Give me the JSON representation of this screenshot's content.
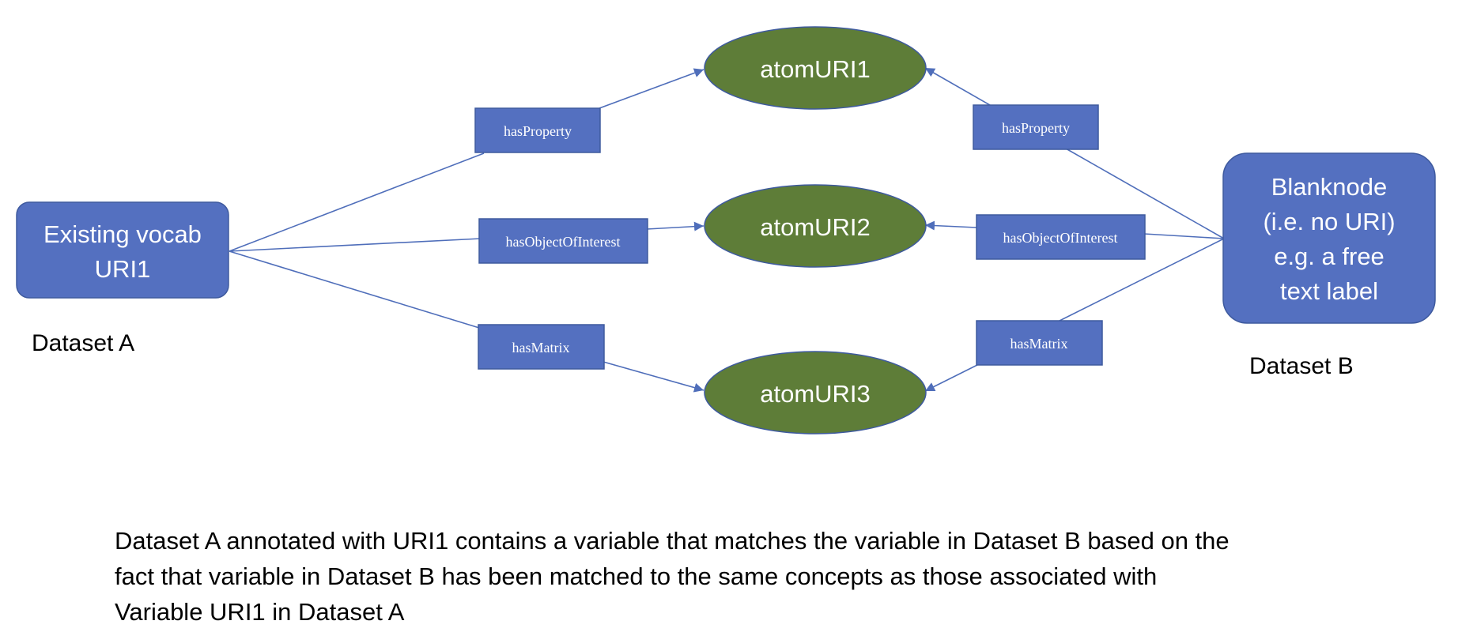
{
  "nodes": {
    "vocab": {
      "lines": [
        "Existing vocab",
        "URI1"
      ]
    },
    "blank": {
      "lines": [
        "Blanknode",
        "(i.e. no URI)",
        "e.g. a free",
        "text label"
      ]
    },
    "atom1": {
      "label": "atomURI1"
    },
    "atom2": {
      "label": "atomURI2"
    },
    "atom3": {
      "label": "atomURI3"
    }
  },
  "edges": {
    "left_property": "hasProperty",
    "left_object": "hasObjectOfInterest",
    "left_matrix": "hasMatrix",
    "right_property": "hasProperty",
    "right_object": "hasObjectOfInterest",
    "right_matrix": "hasMatrix"
  },
  "dataset_labels": {
    "a": "Dataset A",
    "b": "Dataset B"
  },
  "description": [
    "Dataset A annotated with URI1 contains a variable that matches the variable in Dataset B based on the",
    "fact that variable in Dataset B has been matched to the same concepts as those associated with",
    "Variable URI1 in Dataset A"
  ],
  "colors": {
    "box_blue": "#5470C0",
    "atom_green": "#5E7D38",
    "line_blue": "#4F6EBA"
  }
}
